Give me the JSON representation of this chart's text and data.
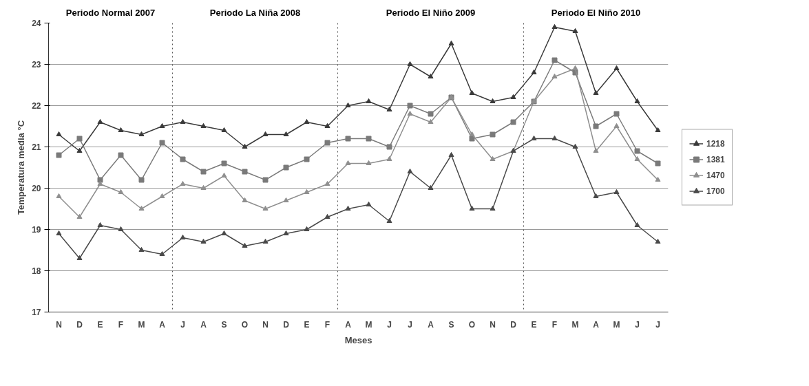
{
  "chart_data": {
    "type": "line",
    "xlabel": "Meses",
    "ylabel": "Temperatura media °C",
    "categories": [
      "N",
      "D",
      "E",
      "F",
      "M",
      "A",
      "J",
      "A",
      "S",
      "O",
      "N",
      "D",
      "E",
      "F",
      "A",
      "M",
      "J",
      "J",
      "A",
      "S",
      "O",
      "N",
      "D",
      "E",
      "F",
      "M",
      "A",
      "M",
      "J",
      "J"
    ],
    "series": [
      {
        "name": "1218",
        "color": "#3a3a3a",
        "marker": "triangle",
        "values": [
          21.3,
          20.9,
          21.6,
          21.4,
          21.3,
          21.5,
          21.6,
          21.5,
          21.4,
          21.0,
          21.3,
          21.3,
          21.6,
          21.5,
          22.0,
          22.1,
          21.9,
          23.0,
          22.7,
          23.5,
          22.3,
          22.1,
          22.2,
          22.8,
          23.9,
          23.8,
          22.3,
          22.9,
          22.1,
          21.4
        ]
      },
      {
        "name": "1381",
        "color": "#7a7a7a",
        "marker": "square",
        "values": [
          20.8,
          21.2,
          20.2,
          20.8,
          20.2,
          21.1,
          20.7,
          20.4,
          20.6,
          20.4,
          20.2,
          20.5,
          20.7,
          21.1,
          21.2,
          21.2,
          21.0,
          22.0,
          21.8,
          22.2,
          21.2,
          21.3,
          21.6,
          22.1,
          23.1,
          22.8,
          21.5,
          21.8,
          20.9,
          20.6
        ]
      },
      {
        "name": "1470",
        "color": "#8f8f8f",
        "marker": "triangle",
        "values": [
          19.8,
          19.3,
          20.1,
          19.9,
          19.5,
          19.8,
          20.1,
          20.0,
          20.3,
          19.7,
          19.5,
          19.7,
          19.9,
          20.1,
          20.6,
          20.6,
          20.7,
          21.8,
          21.6,
          22.2,
          21.3,
          20.7,
          20.9,
          22.1,
          22.7,
          22.9,
          20.9,
          21.5,
          20.7,
          20.2
        ]
      },
      {
        "name": "1700",
        "color": "#4a4a4a",
        "marker": "triangle",
        "values": [
          18.9,
          18.3,
          19.1,
          19.0,
          18.5,
          18.4,
          18.8,
          18.7,
          18.9,
          18.6,
          18.7,
          18.9,
          19.0,
          19.3,
          19.5,
          19.6,
          19.2,
          20.4,
          20.0,
          20.8,
          19.5,
          19.5,
          20.9,
          21.2,
          21.2,
          21.0,
          19.8,
          19.9,
          19.1,
          18.7
        ]
      }
    ],
    "ylim": [
      17,
      24
    ],
    "yticks": [
      17,
      18,
      19,
      20,
      21,
      22,
      23,
      24
    ],
    "grid": "y",
    "legend": "right",
    "annotations": [
      "Periodo Normal 2007",
      "Periodo La Niña 2008",
      "Periodo El Niño 2009",
      "Periodo El Niño 2010"
    ]
  }
}
